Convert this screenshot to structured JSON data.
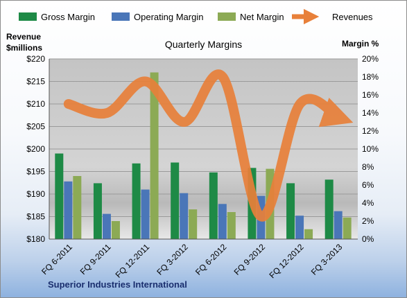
{
  "chart_data": {
    "type": "bar",
    "title": "Quarterly Margins",
    "left_axis_label_line1": "Revenue",
    "left_axis_label_line2": "$millions",
    "right_axis_label": "Margin %",
    "company": "Superior Industries International",
    "categories": [
      "FQ 6-2011",
      "FQ 9-2011",
      "FQ 12-2011",
      "FQ 3-2012",
      "FQ 6-2012",
      "FQ 9-2012",
      "FQ 12-2012",
      "FQ 3-2013"
    ],
    "left_ylim": [
      180,
      220
    ],
    "left_ticks": [
      "$180",
      "$185",
      "$190",
      "$195",
      "$200",
      "$205",
      "$210",
      "$215",
      "$220"
    ],
    "right_ylim": [
      0,
      20
    ],
    "right_ticks": [
      "0%",
      "2%",
      "4%",
      "6%",
      "8%",
      "10%",
      "12%",
      "14%",
      "16%",
      "18%",
      "20%"
    ],
    "series": [
      {
        "name": "Gross Margin",
        "kind": "bar",
        "axis": "right",
        "color": "#1e8a46",
        "values": [
          9.5,
          6.2,
          8.4,
          8.5,
          7.4,
          7.9,
          6.2,
          6.6
        ]
      },
      {
        "name": "Operating Margin",
        "kind": "bar",
        "axis": "right",
        "color": "#4a76b8",
        "values": [
          6.4,
          2.8,
          5.5,
          5.1,
          3.9,
          4.8,
          2.6,
          3.1
        ]
      },
      {
        "name": "Net Margin",
        "kind": "bar",
        "axis": "right",
        "color": "#8caa55",
        "values": [
          7.0,
          2.0,
          18.5,
          3.3,
          3.0,
          7.8,
          1.1,
          2.4
        ]
      },
      {
        "name": "Revenues",
        "kind": "line",
        "axis": "left",
        "color": "#e8803a",
        "values": [
          210,
          208,
          215,
          206,
          216,
          185,
          210,
          207
        ]
      }
    ],
    "grid": true,
    "legend": "top"
  }
}
